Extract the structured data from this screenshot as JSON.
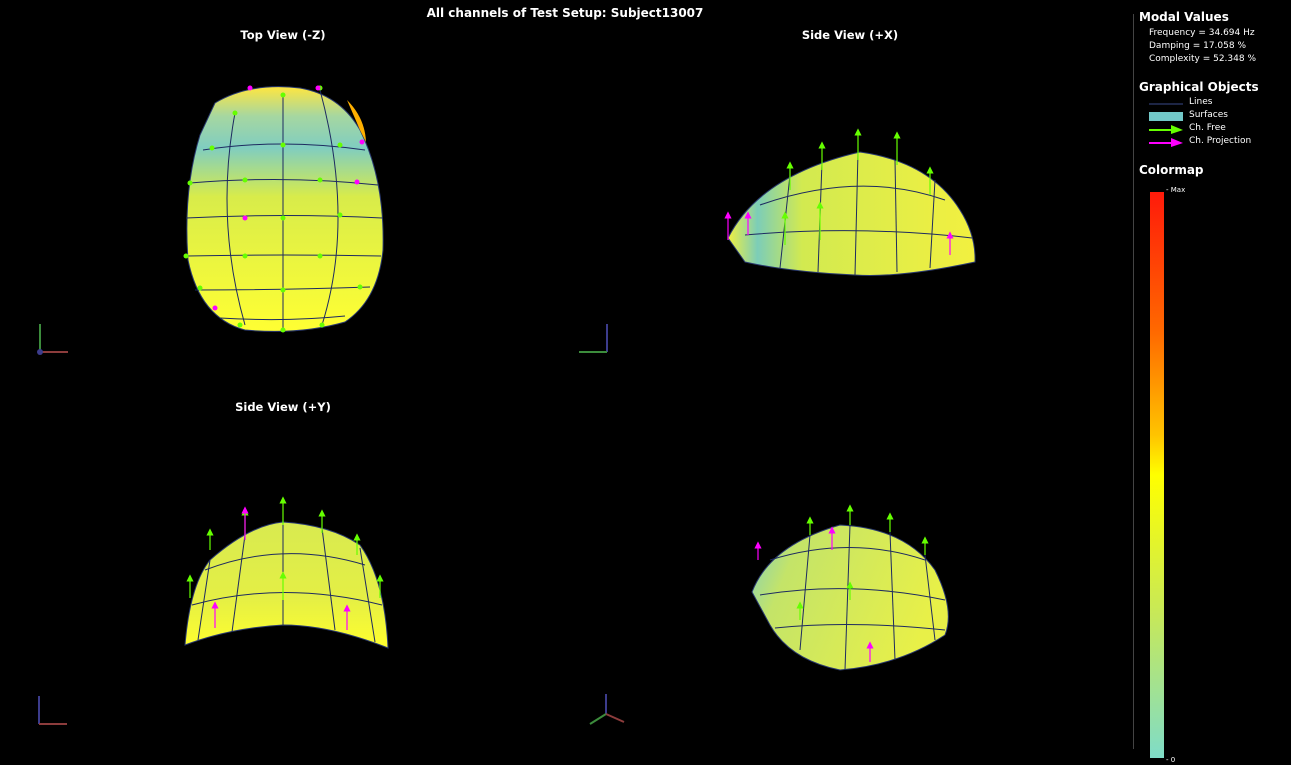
{
  "window_title": "All channels of Test Setup: Subject13007",
  "views": [
    {
      "title": "Top View (-Z)"
    },
    {
      "title": "Side View (+X)"
    },
    {
      "title": "Side View (+Y)"
    },
    {
      "title": ""
    }
  ],
  "sidebar": {
    "modal_values": {
      "heading": "Modal Values",
      "frequency": "Frequency = 34.694 Hz",
      "damping": "Damping = 17.058 %",
      "complexity": "Complexity = 52.348 %"
    },
    "graphical_objects": {
      "heading": "Graphical Objects",
      "items": [
        {
          "label": "Lines",
          "icon": "line-swatch-icon"
        },
        {
          "label": "Surfaces",
          "icon": "surface-swatch-icon"
        },
        {
          "label": "Ch. Free",
          "icon": "arrow-green-icon"
        },
        {
          "label": "Ch. Projection",
          "icon": "arrow-magenta-icon"
        }
      ]
    },
    "colormap": {
      "heading": "Colormap",
      "max_label": "- Max",
      "min_label": "- 0"
    }
  },
  "colors": {
    "surface_high": "#ffff33",
    "surface_mid": "#c8e860",
    "surface_low": "#72c8c8",
    "arrow_free": "#66ff00",
    "arrow_projection": "#ff00ff",
    "mesh_line": "#203060"
  }
}
